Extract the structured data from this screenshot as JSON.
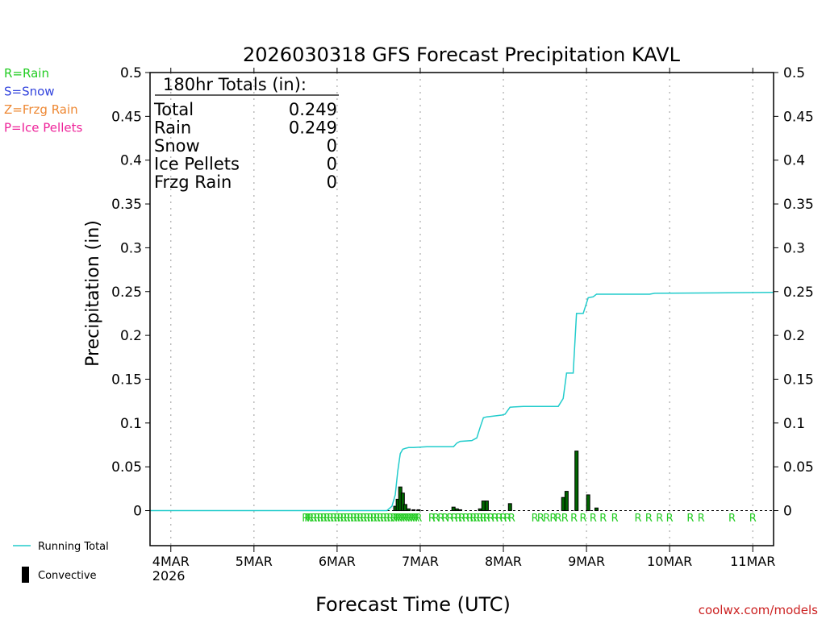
{
  "chart_data": {
    "type": "bar",
    "title": "2026030318 GFS Forecast Precipitation KAVL",
    "xlabel": "Forecast Time (UTC)",
    "ylabel": "Precipitation (in)",
    "ylim": [
      -0.04,
      0.5
    ],
    "xlim": [
      -0.25,
      7.25
    ],
    "y_ticks": [
      0,
      0.05,
      0.1,
      0.15,
      0.2,
      0.25,
      0.3,
      0.35,
      0.4,
      0.45,
      0.5
    ],
    "y_tick_labels": [
      "0",
      "0.05",
      "0.1",
      "0.15",
      "0.2",
      "0.25",
      "0.3",
      "0.35",
      "0.4",
      "0.45",
      "0.5"
    ],
    "x_ticks": [
      {
        "day": 0,
        "label": "4MAR",
        "sublabel": "2026"
      },
      {
        "day": 1,
        "label": "5MAR",
        "sublabel": ""
      },
      {
        "day": 2,
        "label": "6MAR",
        "sublabel": ""
      },
      {
        "day": 3,
        "label": "7MAR",
        "sublabel": ""
      },
      {
        "day": 4,
        "label": "8MAR",
        "sublabel": ""
      },
      {
        "day": 5,
        "label": "9MAR",
        "sublabel": ""
      },
      {
        "day": 6,
        "label": "10MAR",
        "sublabel": ""
      },
      {
        "day": 7,
        "label": "11MAR",
        "sublabel": ""
      }
    ],
    "grid": "vertical dotted at day ticks",
    "totals": {
      "heading": "180hr Totals (in):",
      "rows": [
        {
          "label": "Total",
          "value": "0.249"
        },
        {
          "label": "Rain",
          "value": "0.249"
        },
        {
          "label": "Snow",
          "value": "0"
        },
        {
          "label": "Ice Pellets",
          "value": "0"
        },
        {
          "label": "Frzg Rain",
          "value": "0"
        }
      ]
    },
    "ptype_legend": [
      {
        "text": "R=Rain",
        "color": "#22cc22"
      },
      {
        "text": "S=Snow",
        "color": "#3344dd"
      },
      {
        "text": "Z=Frzg Rain",
        "color": "#ee8833"
      },
      {
        "text": "P=Ice Pellets",
        "color": "#ee2299"
      }
    ],
    "series_legend": [
      {
        "name": "Running Total",
        "kind": "line",
        "color": "#22cccc"
      },
      {
        "name": "Convective",
        "kind": "bar",
        "color": "#000000"
      }
    ],
    "colors": {
      "running_total": "#22cccc",
      "bar_edge": "#000000",
      "bar_fill": "#006600",
      "convective": "#000000",
      "rain_marker": "#22cc22"
    },
    "series": [
      {
        "name": "Period Precipitation",
        "x_days": [
          2.7,
          2.73,
          2.76,
          2.79,
          2.82,
          2.86,
          2.92,
          2.98,
          3.4,
          3.44,
          3.48,
          3.72,
          3.76,
          3.8,
          4.08,
          4.72,
          4.76,
          4.88,
          5.02,
          5.12
        ],
        "values": [
          0.005,
          0.013,
          0.027,
          0.02,
          0.007,
          0.002,
          0.001,
          0.001,
          0.004,
          0.002,
          0.001,
          0.002,
          0.011,
          0.011,
          0.008,
          0.015,
          0.022,
          0.068,
          0.018,
          0.003
        ]
      },
      {
        "name": "Running Total",
        "x_days": [
          -0.25,
          2.6,
          2.66,
          2.7,
          2.73,
          2.76,
          2.79,
          2.82,
          2.86,
          2.92,
          3.08,
          3.4,
          3.44,
          3.48,
          3.62,
          3.68,
          3.72,
          3.76,
          3.8,
          3.98,
          4.02,
          4.08,
          4.24,
          4.66,
          4.72,
          4.76,
          4.84,
          4.88,
          4.96,
          5.02,
          5.08,
          5.12,
          5.2,
          5.76,
          5.82,
          7.25
        ],
        "values": [
          0,
          0,
          0.005,
          0.018,
          0.045,
          0.065,
          0.07,
          0.071,
          0.072,
          0.072,
          0.073,
          0.073,
          0.077,
          0.079,
          0.08,
          0.083,
          0.095,
          0.106,
          0.107,
          0.109,
          0.11,
          0.118,
          0.119,
          0.119,
          0.128,
          0.157,
          0.157,
          0.225,
          0.225,
          0.243,
          0.244,
          0.247,
          0.247,
          0.247,
          0.248,
          0.249
        ]
      }
    ],
    "rain_marker_days": [
      1.62,
      1.65,
      1.68,
      1.72,
      1.76,
      1.8,
      1.84,
      1.88,
      1.92,
      1.96,
      2.0,
      2.04,
      2.08,
      2.12,
      2.16,
      2.2,
      2.24,
      2.28,
      2.32,
      2.36,
      2.4,
      2.44,
      2.48,
      2.52,
      2.56,
      2.6,
      2.64,
      2.68,
      2.71,
      2.74,
      2.77,
      2.8,
      2.83,
      2.86,
      2.89,
      2.92,
      2.95,
      2.98,
      3.14,
      3.19,
      3.25,
      3.3,
      3.36,
      3.41,
      3.46,
      3.5,
      3.55,
      3.6,
      3.64,
      3.68,
      3.72,
      3.76,
      3.8,
      3.85,
      3.9,
      3.95,
      4.0,
      4.05,
      4.1,
      4.38,
      4.45,
      4.52,
      4.6,
      4.66,
      4.74,
      4.85,
      4.96,
      5.08,
      5.2,
      5.34,
      5.62,
      5.75,
      5.88,
      6.0,
      6.25,
      6.38,
      6.75,
      7.0
    ],
    "rain_marker_label": "R",
    "credit": "coolwx.com/models"
  }
}
